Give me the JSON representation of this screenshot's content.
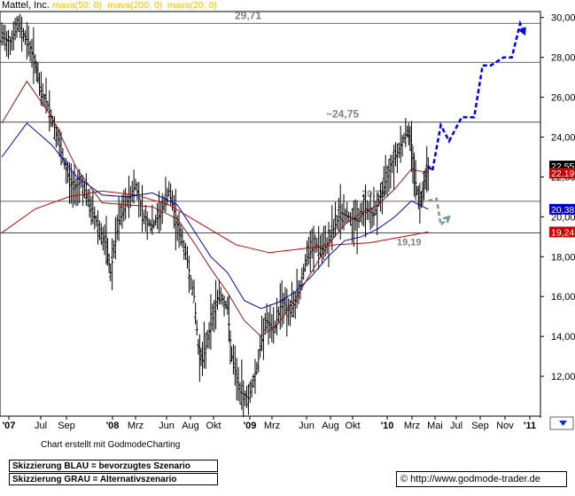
{
  "chart_data": {
    "type": "line",
    "title": "Mattel, Inc.",
    "indicators": [
      {
        "label": "mava(50; 0)",
        "color": "#0000cc"
      },
      {
        "label": "mava(200; 0)",
        "color": "#cc0000"
      },
      {
        "label": "mava(20; 0)",
        "color": "#cc0000"
      }
    ],
    "y_axis": {
      "ticks": [
        12,
        14,
        16,
        18,
        20,
        22,
        24,
        26,
        28,
        30
      ],
      "tick_labels": [
        "12,00",
        "14,00",
        "16,00",
        "18,00",
        "20,00",
        "22,00",
        "24,00",
        "26,00",
        "28,00",
        "30,00"
      ],
      "range": [
        10,
        30.3
      ],
      "side": "right"
    },
    "x_axis": {
      "tick_labels": [
        "'07",
        "Jul",
        "Sep",
        "'08",
        "Mrz",
        "Jun",
        "Aug",
        "Okt",
        "'09",
        "Mrz",
        "Jun",
        "Aug",
        "Okt",
        "'10",
        "Mrz",
        "Mai",
        "Jul",
        "Sep",
        "Nov",
        "'11"
      ]
    },
    "horizontal_lines": [
      {
        "value": 29.71,
        "label": "29,71"
      },
      {
        "value": 27.75,
        "label": ""
      },
      {
        "value": 24.75,
        "label": "~24,75"
      },
      {
        "value": 20.78,
        "label": "20,78"
      },
      {
        "value": 19.19,
        "label": "19,19"
      }
    ],
    "price_labels": [
      {
        "value": 22.55,
        "text": "22,55",
        "bg": "#000000",
        "fg": "#ffffff"
      },
      {
        "value": 22.19,
        "text": "22,19",
        "bg": "#cc0000",
        "fg": "#ffffff"
      },
      {
        "value": 20.38,
        "text": "20,38",
        "bg": "#0000cc",
        "fg": "#ffffff"
      },
      {
        "value": 19.24,
        "text": "19,24",
        "bg": "#cc0000",
        "fg": "#ffffff"
      }
    ],
    "price_series": [
      {
        "x": 0,
        "y": 29.0
      },
      {
        "x": 2,
        "y": 28.8
      },
      {
        "x": 4,
        "y": 29.6
      },
      {
        "x": 6,
        "y": 28.9
      },
      {
        "x": 8,
        "y": 27.8
      },
      {
        "x": 9,
        "y": 26.5
      },
      {
        "x": 11,
        "y": 25.6
      },
      {
        "x": 13,
        "y": 24.2
      },
      {
        "x": 15,
        "y": 22.6
      },
      {
        "x": 17,
        "y": 21.4
      },
      {
        "x": 19,
        "y": 21.8
      },
      {
        "x": 21,
        "y": 20.6
      },
      {
        "x": 23,
        "y": 19.6
      },
      {
        "x": 25,
        "y": 18.5
      },
      {
        "x": 26,
        "y": 17.2
      },
      {
        "x": 28,
        "y": 19.8
      },
      {
        "x": 30,
        "y": 20.8
      },
      {
        "x": 32,
        "y": 21.6
      },
      {
        "x": 34,
        "y": 20.0
      },
      {
        "x": 36,
        "y": 19.5
      },
      {
        "x": 38,
        "y": 20.2
      },
      {
        "x": 40,
        "y": 21.3
      },
      {
        "x": 42,
        "y": 19.6
      },
      {
        "x": 44,
        "y": 18.2
      },
      {
        "x": 46,
        "y": 16.0
      },
      {
        "x": 47,
        "y": 13.5
      },
      {
        "x": 48,
        "y": 12.8
      },
      {
        "x": 50,
        "y": 14.6
      },
      {
        "x": 52,
        "y": 16.2
      },
      {
        "x": 54,
        "y": 15.4
      },
      {
        "x": 55,
        "y": 13.0
      },
      {
        "x": 57,
        "y": 11.2
      },
      {
        "x": 59,
        "y": 10.9
      },
      {
        "x": 61,
        "y": 12.4
      },
      {
        "x": 63,
        "y": 14.8
      },
      {
        "x": 65,
        "y": 14.2
      },
      {
        "x": 67,
        "y": 15.8
      },
      {
        "x": 69,
        "y": 15.2
      },
      {
        "x": 71,
        "y": 16.2
      },
      {
        "x": 73,
        "y": 18.0
      },
      {
        "x": 75,
        "y": 18.6
      },
      {
        "x": 77,
        "y": 18.3
      },
      {
        "x": 79,
        "y": 19.2
      },
      {
        "x": 81,
        "y": 20.2
      },
      {
        "x": 83,
        "y": 20.0
      },
      {
        "x": 85,
        "y": 19.8
      },
      {
        "x": 87,
        "y": 20.4
      },
      {
        "x": 89,
        "y": 20.1
      },
      {
        "x": 91,
        "y": 21.2
      },
      {
        "x": 93,
        "y": 22.6
      },
      {
        "x": 95,
        "y": 23.4
      },
      {
        "x": 97,
        "y": 24.3
      },
      {
        "x": 98,
        "y": 23.6
      },
      {
        "x": 99,
        "y": 21.7
      },
      {
        "x": 100,
        "y": 20.6
      },
      {
        "x": 101,
        "y": 21.8
      },
      {
        "x": 102,
        "y": 22.55
      }
    ],
    "mava50_series": [
      {
        "x": 0,
        "y": 23.0
      },
      {
        "x": 6,
        "y": 24.7
      },
      {
        "x": 12,
        "y": 23.6
      },
      {
        "x": 18,
        "y": 22.0
      },
      {
        "x": 24,
        "y": 21.1
      },
      {
        "x": 30,
        "y": 21.0
      },
      {
        "x": 36,
        "y": 21.2
      },
      {
        "x": 42,
        "y": 20.6
      },
      {
        "x": 46,
        "y": 19.3
      },
      {
        "x": 50,
        "y": 18.0
      },
      {
        "x": 54,
        "y": 17.2
      },
      {
        "x": 58,
        "y": 15.8
      },
      {
        "x": 62,
        "y": 15.4
      },
      {
        "x": 66,
        "y": 15.7
      },
      {
        "x": 70,
        "y": 16.2
      },
      {
        "x": 74,
        "y": 17.0
      },
      {
        "x": 78,
        "y": 18.0
      },
      {
        "x": 82,
        "y": 18.8
      },
      {
        "x": 86,
        "y": 19.0
      },
      {
        "x": 90,
        "y": 19.4
      },
      {
        "x": 94,
        "y": 20.0
      },
      {
        "x": 98,
        "y": 20.8
      },
      {
        "x": 102,
        "y": 20.38
      }
    ],
    "mava20_series": [
      {
        "x": 0,
        "y": 24.7
      },
      {
        "x": 6,
        "y": 26.8
      },
      {
        "x": 12,
        "y": 25.0
      },
      {
        "x": 18,
        "y": 22.4
      },
      {
        "x": 24,
        "y": 20.7
      },
      {
        "x": 30,
        "y": 20.6
      },
      {
        "x": 36,
        "y": 20.5
      },
      {
        "x": 42,
        "y": 19.9
      },
      {
        "x": 46,
        "y": 18.7
      },
      {
        "x": 50,
        "y": 17.4
      },
      {
        "x": 54,
        "y": 16.2
      },
      {
        "x": 58,
        "y": 14.8
      },
      {
        "x": 62,
        "y": 14.0
      },
      {
        "x": 66,
        "y": 14.6
      },
      {
        "x": 70,
        "y": 15.8
      },
      {
        "x": 74,
        "y": 17.2
      },
      {
        "x": 78,
        "y": 18.6
      },
      {
        "x": 82,
        "y": 19.6
      },
      {
        "x": 86,
        "y": 20.2
      },
      {
        "x": 90,
        "y": 20.6
      },
      {
        "x": 94,
        "y": 21.4
      },
      {
        "x": 98,
        "y": 22.4
      },
      {
        "x": 102,
        "y": 22.19
      }
    ],
    "mava200_series": [
      {
        "x": 0,
        "y": 19.2
      },
      {
        "x": 8,
        "y": 20.4
      },
      {
        "x": 16,
        "y": 21.0
      },
      {
        "x": 24,
        "y": 21.3
      },
      {
        "x": 32,
        "y": 21.1
      },
      {
        "x": 40,
        "y": 20.6
      },
      {
        "x": 48,
        "y": 19.6
      },
      {
        "x": 56,
        "y": 18.6
      },
      {
        "x": 64,
        "y": 18.2
      },
      {
        "x": 72,
        "y": 18.4
      },
      {
        "x": 80,
        "y": 18.6
      },
      {
        "x": 88,
        "y": 18.7
      },
      {
        "x": 96,
        "y": 19.0
      },
      {
        "x": 102,
        "y": 19.24
      }
    ],
    "scenario_blue": [
      {
        "x": 102,
        "y": 22.55
      },
      {
        "x": 103,
        "y": 22.3
      },
      {
        "x": 105,
        "y": 24.6
      },
      {
        "x": 107,
        "y": 23.8
      },
      {
        "x": 110,
        "y": 25.0
      },
      {
        "x": 113,
        "y": 25.0
      },
      {
        "x": 115,
        "y": 27.6
      },
      {
        "x": 117,
        "y": 27.6
      },
      {
        "x": 120,
        "y": 28.0
      },
      {
        "x": 122,
        "y": 28.0
      },
      {
        "x": 124,
        "y": 29.7
      },
      {
        "x": 125,
        "y": 29.2
      }
    ],
    "scenario_gray": [
      {
        "x": 102,
        "y": 20.8
      },
      {
        "x": 104,
        "y": 20.9
      },
      {
        "x": 105,
        "y": 19.6
      },
      {
        "x": 107,
        "y": 20.0
      }
    ]
  },
  "footer": {
    "credit": "Chart erstellt mit GodmodeCharting",
    "note_blue": "Skizzierung BLAU = bevorzugtes Szenario",
    "note_gray": "Skizzierung GRAU = Alternativszenario",
    "url": "© http://www.godmode-trader.de"
  }
}
